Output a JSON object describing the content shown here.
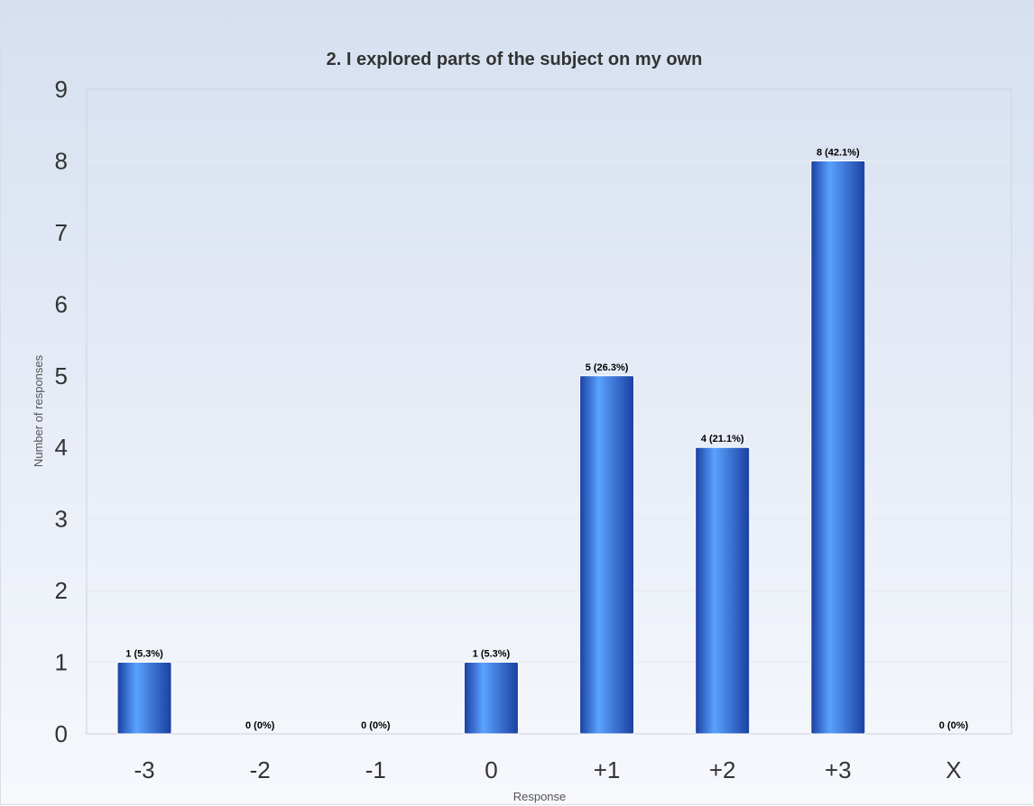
{
  "chart_data": {
    "type": "bar",
    "title": "2. I explored parts of the subject on my own",
    "xlabel": "Response",
    "ylabel": "Number of responses",
    "categories": [
      "-3",
      "-2",
      "-1",
      "0",
      "+1",
      "+2",
      "+3",
      "X"
    ],
    "values": [
      1,
      0,
      0,
      1,
      5,
      4,
      8,
      0
    ],
    "data_labels": [
      "1 (5.3%)",
      "0 (0%)",
      "0 (0%)",
      "1 (5.3%)",
      "5 (26.3%)",
      "4 (21.1%)",
      "8 (42.1%)",
      "0 (0%)"
    ],
    "yticks": [
      "0",
      "1",
      "2",
      "3",
      "4",
      "5",
      "6",
      "7",
      "8",
      "9"
    ],
    "ylim": [
      0,
      9
    ],
    "grid": true,
    "legend": "none",
    "colors": {
      "bar_dark": "#1a3fa0",
      "bar_light": "#5aa2ff",
      "gridline": "#e6e9ef",
      "plot_border": "#cfd3da"
    }
  }
}
